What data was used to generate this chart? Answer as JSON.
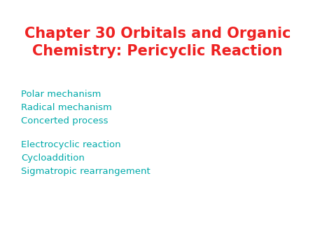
{
  "title_line1": "Chapter 30 Orbitals and Organic",
  "title_line2": "Chemistry: Pericyclic Reaction",
  "title_color": "#ee2222",
  "title_fontsize": 15,
  "title_fontweight": "bold",
  "body_color": "#00aaaa",
  "body_fontsize": 9.5,
  "group1": [
    "Polar mechanism",
    "Radical mechanism",
    "Concerted process"
  ],
  "group2": [
    "Electrocyclic reaction",
    "Cycloaddition",
    "Sigmatropic rearrangement"
  ],
  "background_color": "#ffffff"
}
